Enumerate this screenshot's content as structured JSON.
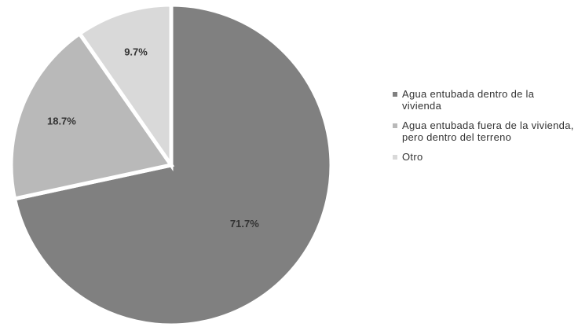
{
  "chart_data": {
    "type": "pie",
    "categories": [
      "Agua entubada dentro de la vivienda",
      "Agua entubada fuera de la vivienda, pero dentro del terreno",
      "Otro"
    ],
    "values": [
      71.7,
      18.7,
      9.7
    ],
    "value_labels": [
      "71.7%",
      "18.7%",
      "9.7%"
    ],
    "colors": [
      "#808080",
      "#b9b9b9",
      "#d9d9d9"
    ],
    "legend": "right"
  }
}
